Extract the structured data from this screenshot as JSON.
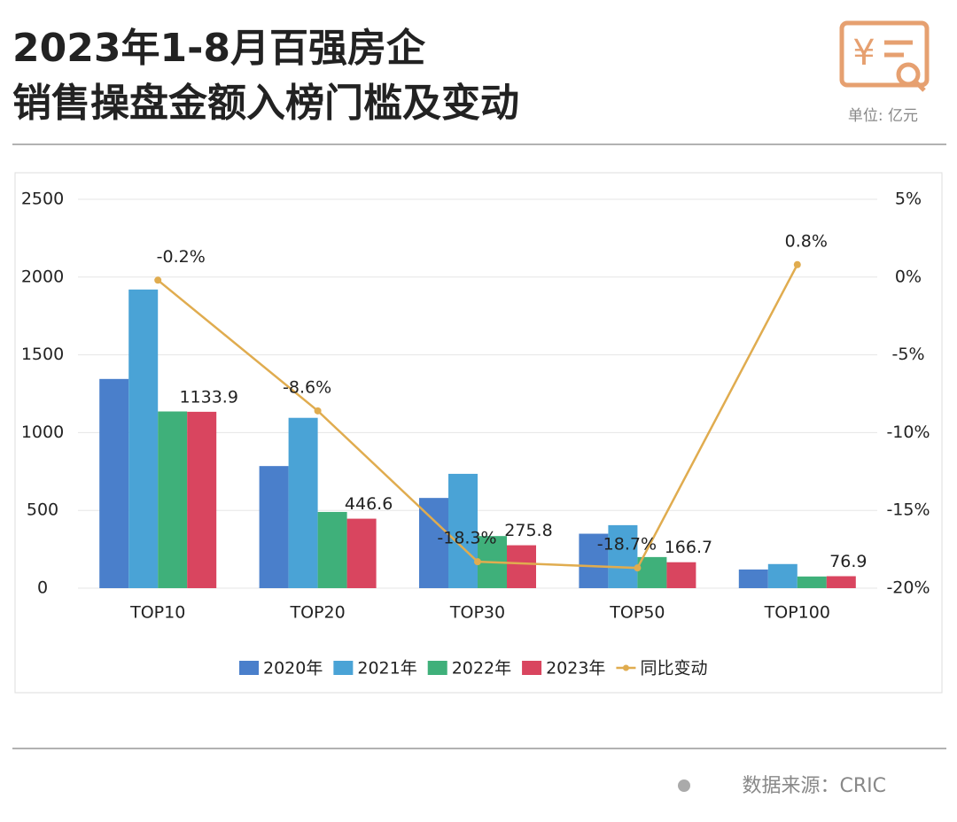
{
  "header": {
    "title_line1": "2023年1-8月百强房企",
    "title_line2": "销售操盘金额入榜门槛及变动",
    "unit": "单位: 亿元"
  },
  "chart_data": {
    "type": "bar",
    "categories": [
      "TOP10",
      "TOP20",
      "TOP30",
      "TOP50",
      "TOP100"
    ],
    "series": [
      {
        "name": "2020年",
        "color": "#4a7fcb",
        "values": [
          1345,
          785,
          580,
          350,
          120
        ]
      },
      {
        "name": "2021年",
        "color": "#4aa3d6",
        "values": [
          1920,
          1095,
          735,
          405,
          155
        ]
      },
      {
        "name": "2022年",
        "color": "#3fb07a",
        "values": [
          1136,
          490,
          335,
          200,
          75
        ]
      },
      {
        "name": "2023年",
        "color": "#d9455f",
        "values": [
          1133.9,
          446.6,
          275.8,
          166.7,
          76.9
        ],
        "show_labels": true
      },
      {
        "name": "同比变动",
        "type": "line",
        "axis": "y2",
        "color": "#e0ac4f",
        "values": [
          -0.2,
          -8.6,
          -18.3,
          -18.7,
          0.8
        ],
        "value_labels": [
          "-0.2%",
          "-8.6%",
          "-18.3%",
          "-18.7%",
          "0.8%"
        ],
        "show_labels": true
      }
    ],
    "ylim": [
      0,
      2500
    ],
    "yticks": [
      0,
      500,
      1000,
      1500,
      2000,
      2500
    ],
    "y2lim": [
      -20,
      5
    ],
    "y2ticks": [
      {
        "value": -20,
        "label": "-20%"
      },
      {
        "value": -15,
        "label": "-15%"
      },
      {
        "value": -10,
        "label": "-10%"
      },
      {
        "value": -5,
        "label": "-5%"
      },
      {
        "value": 0,
        "label": "0%"
      },
      {
        "value": 5,
        "label": "5%"
      }
    ],
    "grid": true,
    "legend": "bottom"
  },
  "footer": {
    "source": "数据来源：CRIC"
  }
}
